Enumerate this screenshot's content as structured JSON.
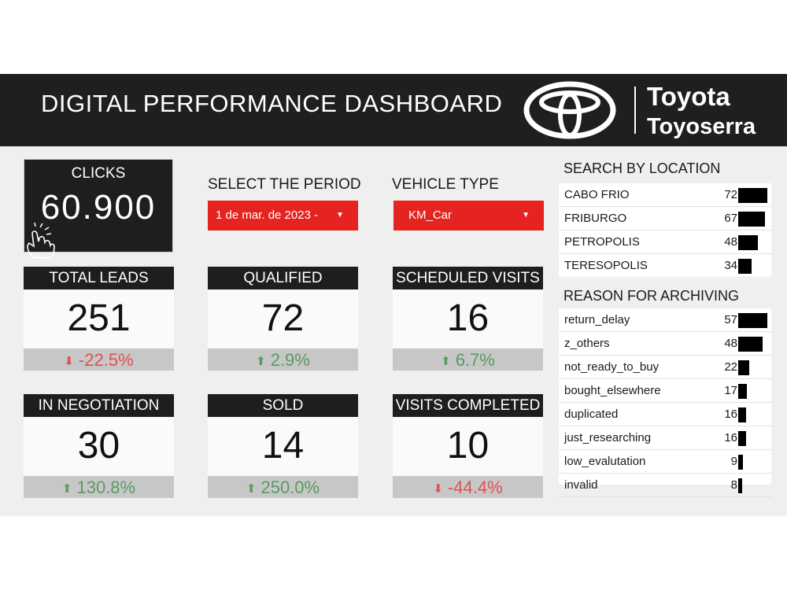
{
  "header": {
    "title": "DIGITAL PERFORMANCE DASHBOARD",
    "brand_line1": "Toyota",
    "brand_line2": "Toyoserra"
  },
  "clicks": {
    "label": "CLICKS",
    "value": "60.900"
  },
  "filters": {
    "period": {
      "label": "SELECT THE PERIOD",
      "value": "1 de mar. de 2023 -"
    },
    "vehicle": {
      "label": "VEHICLE TYPE",
      "value": "KM_Car"
    }
  },
  "kpis": [
    {
      "label": "TOTAL LEADS",
      "value": "251",
      "change": "-22.5%",
      "trend": "down"
    },
    {
      "label": "QUALIFIED",
      "value": "72",
      "change": "2.9%",
      "trend": "up"
    },
    {
      "label": "SCHEDULED VISITS",
      "value": "16",
      "change": "6.7%",
      "trend": "up"
    },
    {
      "label": "IN NEGOTIATION",
      "value": "30",
      "change": "130.8%",
      "trend": "up"
    },
    {
      "label": "SOLD",
      "value": "14",
      "change": "250.0%",
      "trend": "up"
    },
    {
      "label": "VISITS COMPLETED",
      "value": "10",
      "change": "-44.4%",
      "trend": "down"
    }
  ],
  "location": {
    "title": "SEARCH BY LOCATION",
    "rows": [
      {
        "name": "CABO FRIO",
        "value": 72
      },
      {
        "name": "FRIBURGO",
        "value": 67
      },
      {
        "name": "PETROPOLIS",
        "value": 48
      },
      {
        "name": "TERESOPOLIS",
        "value": 34
      }
    ]
  },
  "archiving": {
    "title": "REASON FOR ARCHIVING",
    "rows": [
      {
        "name": "return_delay",
        "value": 57
      },
      {
        "name": "z_others",
        "value": 48
      },
      {
        "name": "not_ready_to_buy",
        "value": 22
      },
      {
        "name": "bought_elsewhere",
        "value": 17
      },
      {
        "name": "duplicated",
        "value": 16
      },
      {
        "name": "just_researching",
        "value": 16
      },
      {
        "name": "low_evalutation",
        "value": 9
      },
      {
        "name": "invalid",
        "value": 8
      }
    ]
  },
  "icons": {
    "hand": "hand-pointer-icon",
    "up": "arrow-up-icon",
    "down": "arrow-down-icon",
    "dropdown": "triangle-down-icon"
  },
  "colors": {
    "header_bg": "#1f1f1f",
    "accent_red": "#e52421",
    "up_green": "#5a9a5f",
    "down_red": "#e05050"
  }
}
